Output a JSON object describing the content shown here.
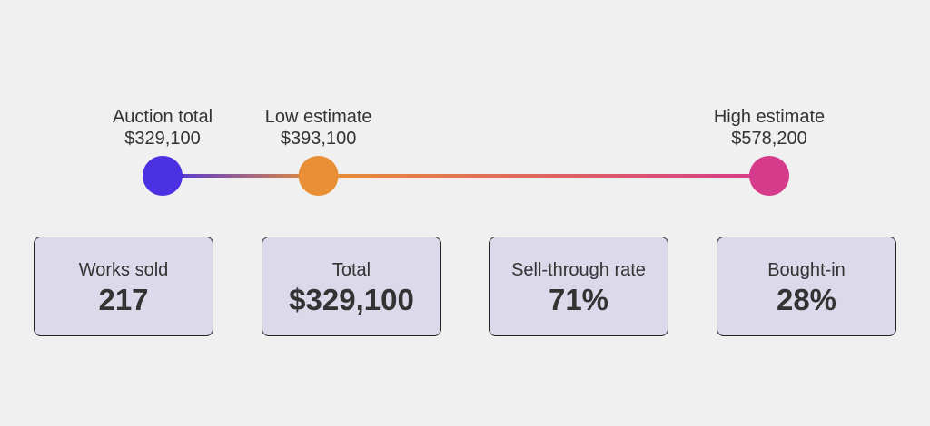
{
  "markers": [
    {
      "label": "Auction total",
      "value": 329100,
      "value_label": "$329,100",
      "color": "#4b31e1"
    },
    {
      "label": "Low estimate",
      "value": 393100,
      "value_label": "$393,100",
      "color": "#e88f35"
    },
    {
      "label": "High estimate",
      "value": 578200,
      "value_label": "$578,200",
      "color": "#d63a8b"
    }
  ],
  "stats": [
    {
      "label": "Works sold",
      "value": "217"
    },
    {
      "label": "Total",
      "value": "$329,100"
    },
    {
      "label": "Sell-through rate",
      "value": "71%"
    },
    {
      "label": "Bought-in",
      "value": "28%"
    }
  ]
}
